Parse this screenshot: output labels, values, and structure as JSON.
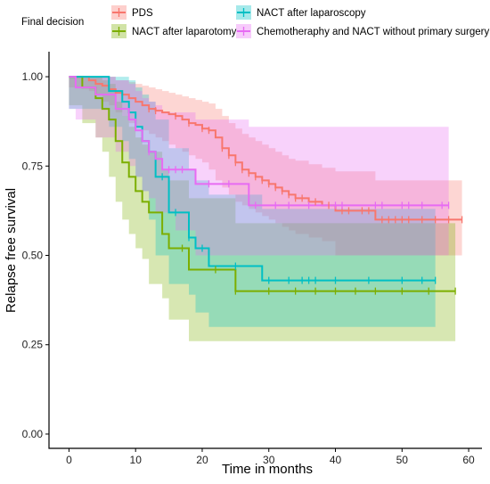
{
  "chart_data": {
    "type": "line",
    "subtype": "kaplan-meier",
    "title": "",
    "xlabel": "Time in months",
    "ylabel": "Relapse free survival",
    "xlim": [
      -3,
      62
    ],
    "ylim": [
      -0.04,
      1.07
    ],
    "xticks": [
      0,
      10,
      20,
      30,
      40,
      50,
      60
    ],
    "yticks": [
      0.0,
      0.25,
      0.5,
      0.75,
      1.0
    ],
    "ytick_labels": [
      "0.00",
      "0.25",
      "0.50",
      "0.75",
      "1.00"
    ],
    "grid": false,
    "legend": {
      "title": "Final decision",
      "placement": "top",
      "entries": [
        "PDS",
        "NACT after laparotomy",
        "NACT after laparoscopy",
        "Chemotheraphy and NACT without primary surgery"
      ]
    },
    "series": [
      {
        "name": "PDS",
        "color": "#F8766D",
        "x": [
          0,
          3,
          4,
          5,
          6,
          7,
          8,
          9,
          10,
          11,
          12,
          13,
          14,
          15,
          16,
          17,
          18,
          19,
          20,
          21,
          22,
          23,
          24,
          25,
          26,
          27,
          28,
          29,
          30,
          31,
          32,
          33,
          34,
          36,
          38,
          40,
          46,
          59
        ],
        "y": [
          1.0,
          0.99,
          0.98,
          0.975,
          0.965,
          0.955,
          0.95,
          0.94,
          0.93,
          0.92,
          0.91,
          0.905,
          0.9,
          0.895,
          0.89,
          0.88,
          0.87,
          0.865,
          0.855,
          0.85,
          0.83,
          0.8,
          0.78,
          0.76,
          0.74,
          0.73,
          0.72,
          0.71,
          0.7,
          0.69,
          0.68,
          0.67,
          0.66,
          0.65,
          0.64,
          0.625,
          0.6,
          0.6
        ],
        "lower": [
          1.0,
          0.97,
          0.96,
          0.95,
          0.93,
          0.92,
          0.9,
          0.89,
          0.87,
          0.86,
          0.85,
          0.84,
          0.83,
          0.82,
          0.81,
          0.8,
          0.79,
          0.78,
          0.77,
          0.76,
          0.74,
          0.71,
          0.69,
          0.67,
          0.65,
          0.64,
          0.63,
          0.62,
          0.61,
          0.6,
          0.59,
          0.58,
          0.57,
          0.56,
          0.55,
          0.54,
          0.5,
          0.5
        ],
        "upper": [
          1.0,
          1.0,
          1.0,
          1.0,
          1.0,
          0.99,
          0.99,
          0.985,
          0.98,
          0.975,
          0.97,
          0.965,
          0.96,
          0.955,
          0.95,
          0.945,
          0.94,
          0.935,
          0.93,
          0.925,
          0.91,
          0.89,
          0.87,
          0.855,
          0.84,
          0.83,
          0.82,
          0.81,
          0.8,
          0.79,
          0.78,
          0.77,
          0.765,
          0.755,
          0.745,
          0.735,
          0.71,
          0.71
        ],
        "censor": [
          12,
          13,
          16,
          18,
          20,
          21,
          23,
          24,
          25,
          26,
          27,
          28,
          29,
          30,
          31,
          32,
          33,
          34,
          35,
          37,
          39,
          41,
          42,
          44,
          45,
          47,
          48,
          49,
          50,
          51,
          53,
          55,
          57,
          59
        ]
      },
      {
        "name": "NACT after laparotomy",
        "color": "#7CAE00",
        "x": [
          0,
          2,
          4,
          5,
          6,
          7,
          8,
          9,
          10,
          11,
          12,
          14,
          15,
          18,
          25,
          58
        ],
        "y": [
          1.0,
          0.97,
          0.94,
          0.91,
          0.88,
          0.82,
          0.76,
          0.72,
          0.68,
          0.65,
          0.62,
          0.56,
          0.52,
          0.46,
          0.4,
          0.4
        ],
        "lower": [
          1.0,
          0.92,
          0.87,
          0.83,
          0.79,
          0.72,
          0.65,
          0.6,
          0.56,
          0.52,
          0.49,
          0.42,
          0.38,
          0.32,
          0.26,
          0.26
        ],
        "upper": [
          1.0,
          1.0,
          1.0,
          0.99,
          0.98,
          0.93,
          0.89,
          0.86,
          0.83,
          0.81,
          0.79,
          0.74,
          0.71,
          0.66,
          0.59,
          0.59
        ],
        "censor": [
          17,
          22,
          25,
          30,
          34,
          37,
          40,
          43,
          46,
          50,
          54,
          58
        ]
      },
      {
        "name": "NACT after laparoscopy",
        "color": "#00BFC4",
        "x": [
          0,
          6,
          8,
          9,
          10,
          11,
          12,
          13,
          15,
          18,
          19,
          21,
          29,
          55
        ],
        "y": [
          1.0,
          0.96,
          0.93,
          0.9,
          0.86,
          0.82,
          0.79,
          0.72,
          0.62,
          0.55,
          0.52,
          0.47,
          0.43,
          0.43
        ],
        "lower": [
          1.0,
          0.91,
          0.86,
          0.82,
          0.77,
          0.72,
          0.68,
          0.6,
          0.5,
          0.42,
          0.39,
          0.34,
          0.3,
          0.3
        ],
        "upper": [
          1.0,
          1.0,
          1.0,
          0.99,
          0.97,
          0.95,
          0.93,
          0.88,
          0.8,
          0.74,
          0.71,
          0.67,
          0.63,
          0.63
        ],
        "censor": [
          14,
          16,
          18,
          20,
          25,
          30,
          33,
          35,
          36,
          37,
          40,
          45,
          50,
          53,
          55
        ]
      },
      {
        "name": "Chemotheraphy and NACT without primary surgery",
        "color": "#E76BF3",
        "x": [
          0,
          1,
          4,
          7,
          9,
          10,
          11,
          12,
          13,
          14,
          16,
          19,
          27,
          57
        ],
        "y": [
          1.0,
          0.97,
          0.95,
          0.91,
          0.88,
          0.85,
          0.82,
          0.79,
          0.77,
          0.74,
          0.74,
          0.7,
          0.64,
          0.64
        ],
        "lower": [
          1.0,
          0.91,
          0.88,
          0.83,
          0.79,
          0.75,
          0.72,
          0.68,
          0.66,
          0.62,
          0.62,
          0.57,
          0.5,
          0.5
        ],
        "upper": [
          1.0,
          1.0,
          1.0,
          0.99,
          0.98,
          0.96,
          0.94,
          0.93,
          0.92,
          0.9,
          0.9,
          0.88,
          0.86,
          0.86
        ],
        "censor": [
          12,
          15,
          16,
          17,
          21,
          24,
          28,
          31,
          33,
          36,
          40,
          41,
          46,
          47,
          50,
          51,
          53,
          56,
          57
        ]
      }
    ]
  }
}
